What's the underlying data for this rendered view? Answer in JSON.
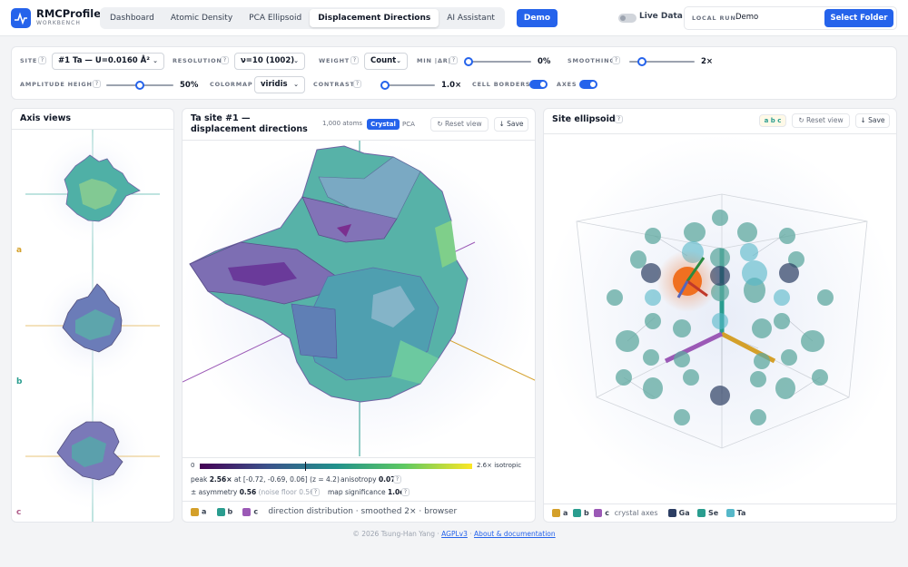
{
  "app": {
    "name": "RMCProfile",
    "subtitle": "WORKBENCH"
  },
  "tabs": [
    {
      "label": "Dashboard"
    },
    {
      "label": "Atomic Density"
    },
    {
      "label": "PCA Ellipsoid"
    },
    {
      "label": "Displacement Directions",
      "active": true
    },
    {
      "label": "AI Assistant"
    }
  ],
  "header": {
    "demo_button": "Demo",
    "live_data_label": "Live Data",
    "live_data_on": false,
    "local_run_label": "LOCAL RUN",
    "local_run_value": "Demo",
    "select_folder_button": "Select Folder"
  },
  "controls": {
    "site": {
      "label": "SITE",
      "value": "#1 Ta — U=0.0160 Å²"
    },
    "resolution": {
      "label": "RESOLUTION",
      "value": "ν=10 (1002)"
    },
    "weight": {
      "label": "WEIGHT",
      "value": "Count"
    },
    "min_dr": {
      "label": "MIN |ΔR|",
      "value_text": "0%",
      "value": 0
    },
    "smoothing": {
      "label": "SMOOTHING",
      "value_text": "2×",
      "value": 2
    },
    "amplitude_height": {
      "label": "AMPLITUDE HEIGHT",
      "value_text": "50%",
      "value": 0.5
    },
    "colormap": {
      "label": "COLORMAP",
      "value": "viridis"
    },
    "contrast": {
      "label": "CONTRAST",
      "value_text": "1.0×",
      "value": 1.0
    },
    "cell_borders": {
      "label": "CELL BORDERS",
      "on": true
    },
    "axes": {
      "label": "AXES",
      "on": true
    },
    "help": "?"
  },
  "axis_views": {
    "title": "Axis views",
    "labels": [
      "a",
      "b",
      "c"
    ]
  },
  "center": {
    "title": "Ta site #1 — displacement directions",
    "atoms": "1,000 atoms",
    "toggle": [
      "Crystal",
      "PCA"
    ],
    "reset": "Reset view",
    "save": "↓ Save",
    "colorbar": {
      "min": "0",
      "max": "2.6× isotropic"
    },
    "peak_label": "peak",
    "peak_value": "2.56×",
    "peak_at": "at [-0.72, -0.69, 0.06] (z = 4.2)",
    "anisotropy_label": "anisotropy",
    "anisotropy_value": "0.07",
    "asymmetry_label": "± asymmetry",
    "asymmetry_value": "0.56",
    "noise_floor": "(noise floor 0.56)",
    "map_sig_label": "map significance",
    "map_sig_value": "1.0σ",
    "legend": [
      "a",
      "b",
      "c"
    ],
    "legend_text": "direction distribution · smoothed 2× · browser"
  },
  "right": {
    "title": "Site ellipsoids",
    "axes_chip": "a b c",
    "reset": "Reset view",
    "save": "↓ Save",
    "legend": [
      "a",
      "b",
      "c"
    ],
    "legend_axes_text": "crystal axes",
    "atoms": [
      "Ga",
      "Se",
      "Ta"
    ]
  },
  "colors": {
    "accent": "#2563eb",
    "a": "#d4a02a",
    "b": "#2a9d8f",
    "c": "#9b59b6",
    "Ga": "#2c3e63",
    "Se": "#2a9d8f",
    "Ta": "#56b8c9"
  },
  "footer": {
    "copyright": "© 2026 Tsung-Han Yang ·",
    "license": "AGPLv3",
    "sep": "·",
    "docs": "About & documentation"
  }
}
